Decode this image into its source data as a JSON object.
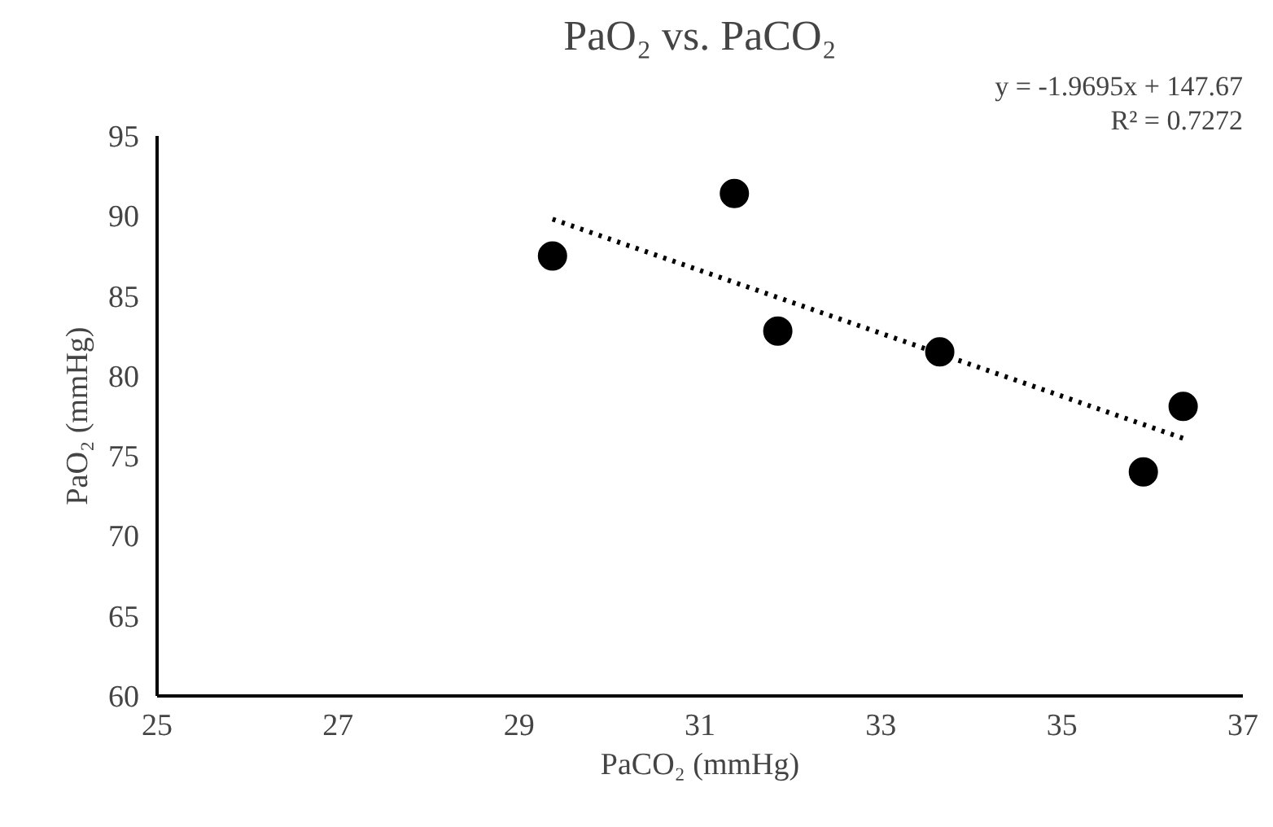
{
  "chart_data": {
    "type": "scatter",
    "title": "PaO₂ vs. PaCO₂",
    "xlabel": "PaCO₂ (mmHg)",
    "ylabel": "PaO₂ (mmHg)",
    "x": [
      29.37,
      31.38,
      31.86,
      33.65,
      35.9,
      36.34
    ],
    "series": [
      {
        "color": "#000000",
        "values": [
          87.5,
          91.4,
          82.8,
          81.5,
          74.0,
          78.1
        ],
        "marker": "circle"
      },
      {
        "type": "line",
        "color": "#000000",
        "x": [
          29.37,
          36.34
        ],
        "values": [
          89.8,
          76.1
        ],
        "line_style": "dotted",
        "marker": "none"
      }
    ],
    "annotations": [
      "y = -1.9695x + 147.67",
      "R² = 0.7272"
    ],
    "xlim": [
      25,
      37
    ],
    "xticks": [
      25,
      27,
      29,
      31,
      33,
      35,
      37
    ],
    "ylim": [
      60,
      95
    ],
    "yticks": [
      60,
      65,
      70,
      75,
      80,
      85,
      90,
      95
    ],
    "grid": false
  }
}
